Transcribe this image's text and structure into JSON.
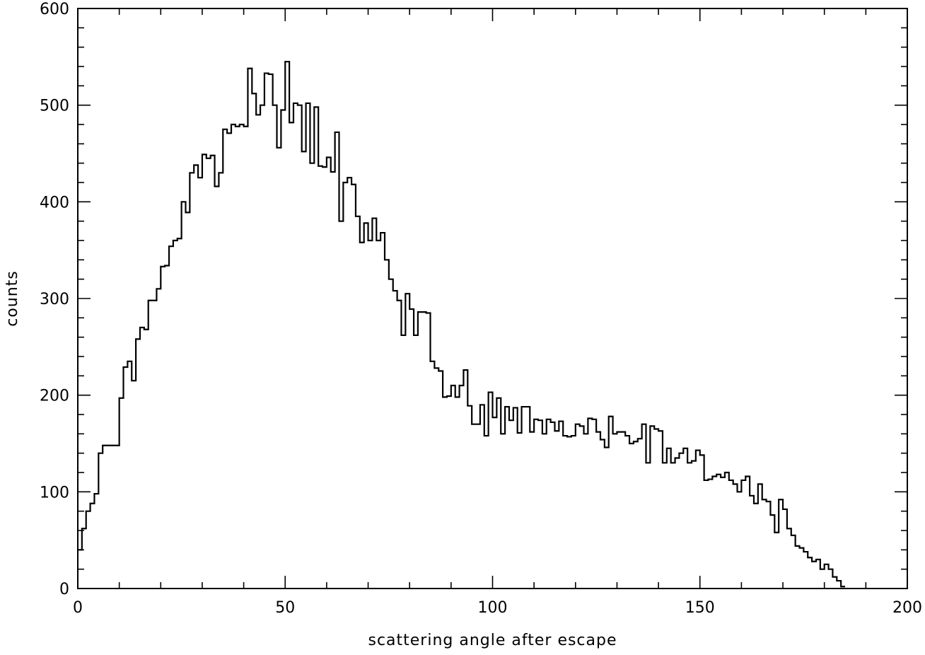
{
  "chart_data": {
    "type": "histogram",
    "title": "",
    "xlabel": "scattering angle after escape",
    "ylabel": "counts",
    "xlim": [
      0,
      200
    ],
    "ylim": [
      0,
      600
    ],
    "x_major_ticks": [
      0,
      50,
      100,
      150,
      200
    ],
    "x_minor_step": 10,
    "y_major_ticks": [
      0,
      100,
      200,
      300,
      400,
      500,
      600
    ],
    "y_minor_step": 20,
    "grid": false,
    "legend": "none",
    "bin_width": 1,
    "bin_start": 0,
    "series": [
      {
        "values": [
          40,
          62,
          80,
          88,
          98,
          140,
          148,
          148,
          148,
          148,
          197,
          229,
          235,
          215,
          258,
          270,
          268,
          298,
          298,
          310,
          333,
          334,
          354,
          360,
          362,
          400,
          389,
          430,
          438,
          425,
          449,
          445,
          448,
          416,
          430,
          475,
          471,
          480,
          478,
          480,
          478,
          538,
          512,
          490,
          500,
          533,
          532,
          500,
          456,
          495,
          545,
          482,
          502,
          500,
          452,
          502,
          440,
          498,
          437,
          436,
          446,
          431,
          472,
          380,
          420,
          425,
          418,
          385,
          358,
          378,
          360,
          383,
          360,
          368,
          340,
          320,
          308,
          298,
          262,
          305,
          289,
          262,
          286,
          286,
          285,
          235,
          228,
          225,
          198,
          199,
          210,
          198,
          210,
          226,
          189,
          170,
          170,
          190,
          158,
          203,
          177,
          197,
          160,
          188,
          174,
          187,
          161,
          188,
          188,
          162,
          175,
          174,
          160,
          175,
          172,
          163,
          173,
          158,
          157,
          158,
          170,
          168,
          160,
          176,
          175,
          162,
          154,
          146,
          178,
          160,
          162,
          162,
          158,
          150,
          152,
          155,
          170,
          130,
          168,
          165,
          163,
          130,
          145,
          130,
          135,
          140,
          145,
          130,
          132,
          143,
          138,
          112,
          113,
          116,
          118,
          115,
          120,
          112,
          108,
          100,
          112,
          116,
          96,
          88,
          108,
          92,
          90,
          76,
          58,
          92,
          82,
          62,
          55,
          44,
          42,
          38,
          32,
          28,
          30,
          20,
          25,
          20,
          12,
          8,
          2
        ]
      }
    ]
  }
}
